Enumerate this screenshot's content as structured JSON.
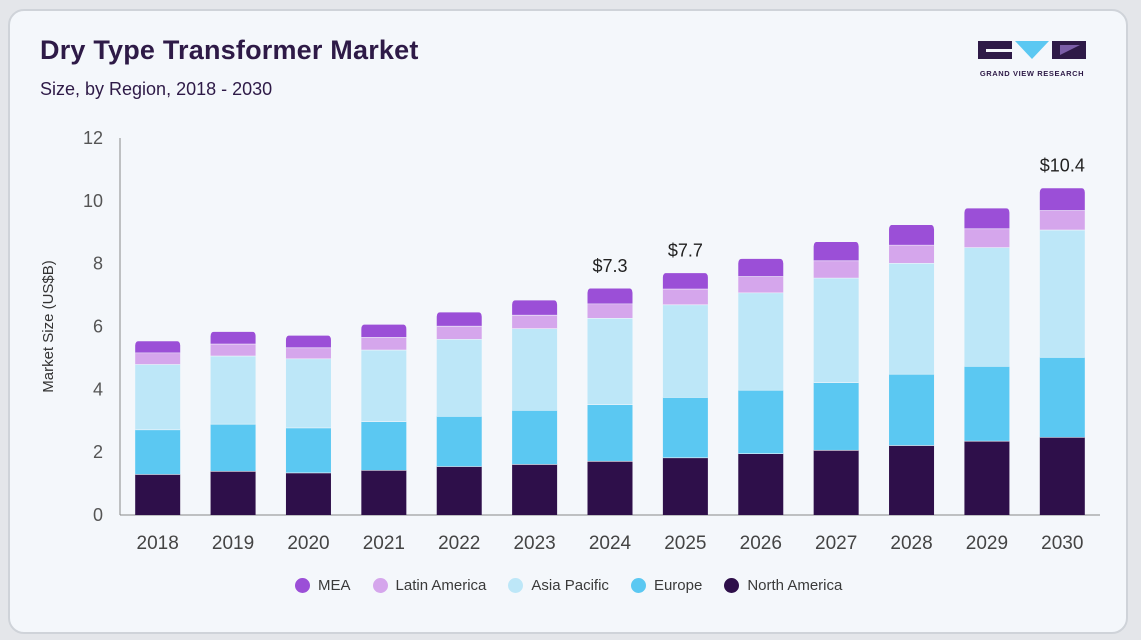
{
  "header": {
    "title": "Dry Type Transformer Market",
    "subtitle": "Size, by Region, 2018 - 2030"
  },
  "logo": {
    "text": "GRAND VIEW RESEARCH",
    "colors": [
      "#2e1a47",
      "#5bc8f2",
      "#7b5ea7"
    ]
  },
  "chart_data": {
    "type": "bar",
    "stacked": true,
    "categories": [
      "2018",
      "2019",
      "2020",
      "2021",
      "2022",
      "2023",
      "2024",
      "2025",
      "2026",
      "2027",
      "2028",
      "2029",
      "2030"
    ],
    "series": [
      {
        "name": "North America",
        "color": "#2e0f4a",
        "values": [
          1.3,
          1.4,
          1.35,
          1.43,
          1.55,
          1.62,
          1.72,
          1.83,
          1.96,
          2.07,
          2.22,
          2.36,
          2.48
        ]
      },
      {
        "name": "Europe",
        "color": "#5bc8f2",
        "values": [
          1.42,
          1.5,
          1.43,
          1.55,
          1.6,
          1.72,
          1.8,
          1.92,
          2.02,
          2.15,
          2.27,
          2.38,
          2.55
        ]
      },
      {
        "name": "Asia Pacific",
        "color": "#bde7f8",
        "values": [
          2.08,
          2.17,
          2.2,
          2.28,
          2.45,
          2.6,
          2.75,
          2.95,
          3.1,
          3.33,
          3.53,
          3.78,
          4.05
        ]
      },
      {
        "name": "Latin America",
        "color": "#d5a6ec",
        "values": [
          0.37,
          0.38,
          0.35,
          0.4,
          0.42,
          0.43,
          0.46,
          0.5,
          0.52,
          0.55,
          0.58,
          0.6,
          0.62
        ]
      },
      {
        "name": "MEA",
        "color": "#9b4fd7",
        "values": [
          0.38,
          0.4,
          0.4,
          0.42,
          0.45,
          0.48,
          0.5,
          0.52,
          0.57,
          0.61,
          0.65,
          0.66,
          0.72
        ]
      }
    ],
    "annotations": [
      {
        "category": "2024",
        "label": "$7.3"
      },
      {
        "category": "2025",
        "label": "$7.7"
      },
      {
        "category": "2030",
        "label": "$10.4"
      }
    ],
    "ylabel": "Market Size (US$B)",
    "xlabel": "",
    "ylim": [
      0,
      12
    ],
    "yticks": [
      0,
      2,
      4,
      6,
      8,
      10,
      12
    ],
    "grid": false,
    "legend_position": "bottom",
    "legend_order": [
      "MEA",
      "Latin America",
      "Asia Pacific",
      "Europe",
      "North America"
    ]
  }
}
